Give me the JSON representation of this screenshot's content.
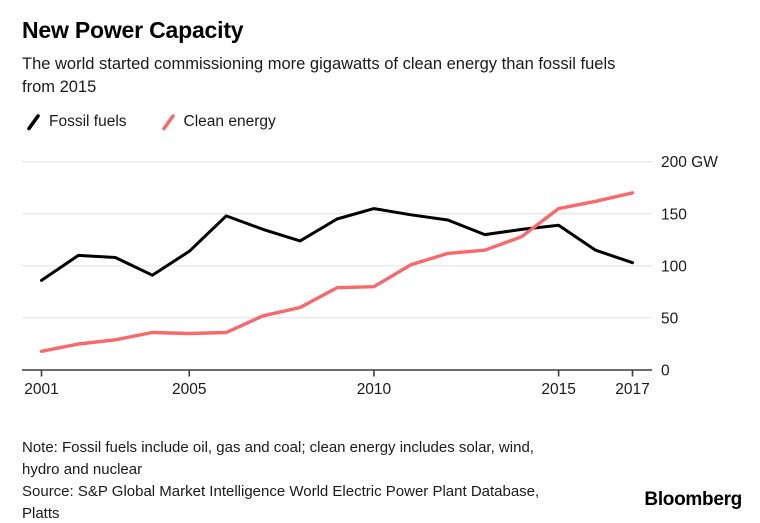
{
  "header": {
    "title": "New Power Capacity",
    "subtitle_lines": [
      "The world started commissioning more gigawatts of clean energy than fossil fuels",
      "from 2015"
    ]
  },
  "legend": {
    "items": [
      {
        "label": "Fossil fuels",
        "color": "#000000"
      },
      {
        "label": "Clean energy",
        "color": "#f8696b"
      }
    ]
  },
  "chart_data": {
    "type": "line",
    "title": "New Power Capacity",
    "xlabel": "",
    "ylabel": "GW",
    "x": [
      2001,
      2002,
      2003,
      2004,
      2005,
      2006,
      2007,
      2008,
      2009,
      2010,
      2011,
      2012,
      2013,
      2014,
      2015,
      2016,
      2017
    ],
    "series": [
      {
        "name": "Fossil fuels",
        "color": "#000000",
        "values": [
          86,
          110,
          108,
          91,
          114,
          148,
          135,
          124,
          145,
          155,
          149,
          144,
          130,
          135,
          139,
          115,
          103
        ]
      },
      {
        "name": "Clean energy",
        "color": "#f8696b",
        "values": [
          18,
          25,
          29,
          36,
          35,
          36,
          52,
          60,
          79,
          80,
          101,
          112,
          115,
          128,
          155,
          162,
          170
        ]
      }
    ],
    "xlim": [
      2001,
      2017
    ],
    "ylim": [
      0,
      200
    ],
    "xticks": [
      2001,
      2005,
      2010,
      2015,
      2017
    ],
    "xtick_labels": [
      "2001",
      "2005",
      "2010",
      "2015",
      "2017"
    ],
    "yticks": [
      0,
      50,
      100,
      150,
      200
    ],
    "ytick_labels": [
      "0",
      "50",
      "100",
      "150",
      "200 GW"
    ],
    "grid": true,
    "legend_position": "top-left"
  },
  "colors": {
    "grid": "#e0e0e0",
    "axis": "#3d3d3d",
    "tick_text": "#1a1a1a"
  },
  "footer": {
    "note_lines": [
      "Note: Fossil fuels include oil, gas and coal; clean energy includes solar, wind,",
      "hydro and nuclear"
    ],
    "source_lines": [
      "Source: S&P Global Market Intelligence World Electric Power Plant Database,",
      "Platts"
    ],
    "brand": "Bloomberg"
  }
}
